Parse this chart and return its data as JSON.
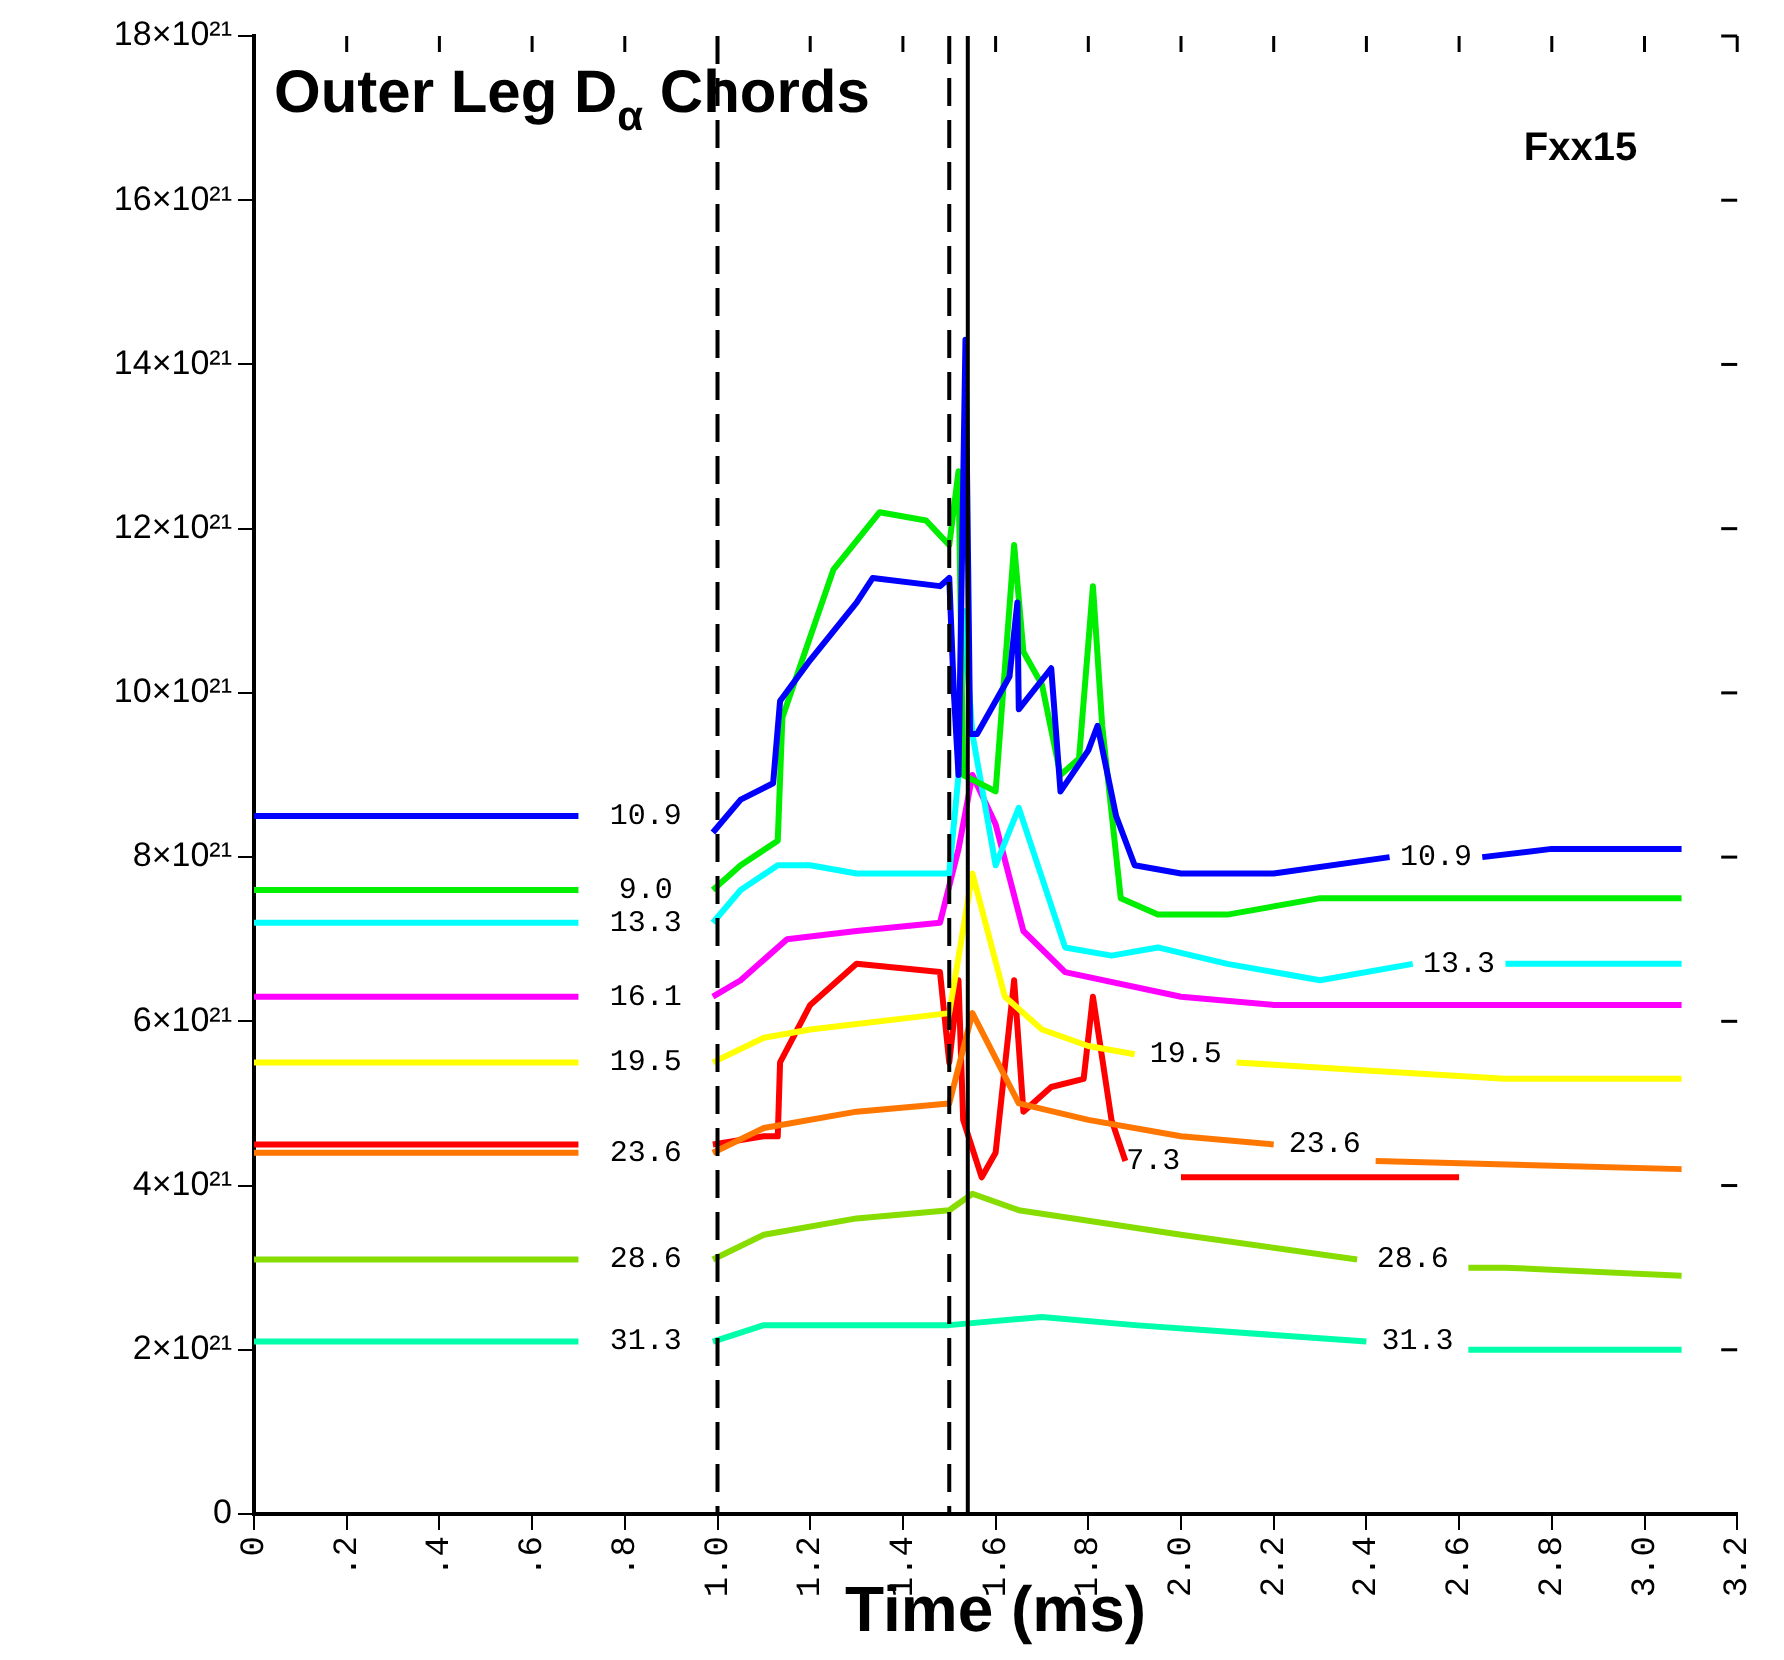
{
  "chart_data": {
    "type": "line",
    "title": "Outer Leg D$_{α}$ Chords",
    "xlabel": "Time (ms)",
    "annotations": [
      "Fxx15"
    ],
    "xlim": [
      0,
      3.2
    ],
    "xticks": [
      0,
      {
        "value": 0.2,
        "label": ".2"
      },
      {
        "value": 0.4,
        "label": ".4"
      },
      {
        "value": 0.6,
        "label": ".6"
      },
      {
        "value": 0.8,
        "label": ".8"
      },
      {
        "value": 1,
        "label": "1.0"
      },
      1.2,
      1.4,
      1.6,
      1.8,
      {
        "value": 2,
        "label": "2.0"
      },
      2.2,
      2.4,
      2.6,
      2.8,
      {
        "value": 3,
        "label": "3.0"
      },
      3.2
    ],
    "ylim": [
      0,
      1.8e+22
    ],
    "yticks": [
      0,
      {
        "value": 2e+21,
        "label": "2×10²¹"
      },
      {
        "value": 4e+21,
        "label": "4×10²¹"
      },
      {
        "value": 6e+21,
        "label": "6×10²¹"
      },
      {
        "value": 8e+21,
        "label": "8×10²¹"
      },
      {
        "value": 1e+22,
        "label": "10×10²¹"
      },
      {
        "value": 1.2e+22,
        "label": "12×10²¹"
      },
      {
        "value": 1.4e+22,
        "label": "14×10²¹"
      },
      {
        "value": 1.6e+22,
        "label": "16×10²¹"
      },
      {
        "value": 1.8e+22,
        "label": "18×10²¹"
      }
    ],
    "grid": false,
    "legend": false,
    "marker": "none",
    "line_style": "solid",
    "ref_lines": [
      {
        "axis": "x",
        "value": 1.0,
        "color": "#000000",
        "line_style": "dashed"
      },
      {
        "axis": "x",
        "value": 1.5,
        "color": "#000000",
        "line_style": "dashed"
      },
      {
        "axis": "x",
        "value": 1.54,
        "color": "#000000",
        "line_style": "solid"
      }
    ],
    "series": [
      {
        "name": "10.9",
        "color": "#0000ff",
        "x": [
          0,
          0.7,
          0.85,
          0.99,
          1.05,
          1.12,
          1.135,
          1.2,
          1.3,
          1.335,
          1.48,
          1.5,
          1.51,
          1.52,
          1.535,
          1.545,
          1.56,
          1.63,
          1.647,
          1.65,
          1.72,
          1.74,
          1.8,
          1.82,
          1.86,
          1.9,
          2.0,
          2.2,
          2.45,
          2.55,
          2.65,
          2.8,
          3.08
        ],
        "values": [
          8.5e+21,
          8.5e+21,
          null,
          8.3e+21,
          8.7e+21,
          8.9e+21,
          9.9e+21,
          1.04e+22,
          1.11e+22,
          1.14e+22,
          1.13e+22,
          1.14e+22,
          1e+22,
          9e+21,
          1.43e+22,
          9.5e+21,
          9.5e+21,
          1.02e+22,
          1.11e+22,
          9.8e+21,
          1.03e+22,
          8.8e+21,
          9.3e+21,
          9.6e+21,
          8.5e+21,
          7.9e+21,
          7.8e+21,
          7.8e+21,
          8e+21,
          null,
          8e+21,
          8.1e+21,
          8.1e+21
        ]
      },
      {
        "name": "9.0",
        "color": "#00ee00",
        "x": [
          0,
          0.7,
          0.85,
          0.99,
          1.05,
          1.13,
          1.14,
          1.25,
          1.35,
          1.45,
          1.5,
          1.52,
          1.53,
          1.6,
          1.64,
          1.66,
          1.7,
          1.74,
          1.78,
          1.81,
          1.83,
          1.87,
          1.95,
          2.1,
          2.3,
          2.6,
          3.08
        ],
        "values": [
          7.6e+21,
          7.6e+21,
          null,
          7.6e+21,
          7.9e+21,
          8.2e+21,
          9.7e+21,
          1.15e+22,
          1.22e+22,
          1.21e+22,
          1.18e+22,
          1.27e+22,
          9e+21,
          8.8e+21,
          1.18e+22,
          1.05e+22,
          1.01e+22,
          9e+21,
          9.2e+21,
          1.13e+22,
          9.6e+21,
          7.5e+21,
          7.3e+21,
          7.3e+21,
          7.5e+21,
          7.5e+21,
          7.5e+21
        ]
      },
      {
        "name": "13.3",
        "color": "#00ffff",
        "x": [
          0,
          0.7,
          0.85,
          0.99,
          1.05,
          1.13,
          1.2,
          1.3,
          1.5,
          1.52,
          1.53,
          1.55,
          1.6,
          1.65,
          1.75,
          1.85,
          1.95,
          2.1,
          2.3,
          2.5,
          2.6,
          2.7,
          3.08
        ],
        "values": [
          7.2e+21,
          7.2e+21,
          null,
          7.2e+21,
          7.6e+21,
          7.9e+21,
          7.9e+21,
          7.8e+21,
          7.8e+21,
          9e+21,
          1.1e+22,
          9.5e+21,
          7.9e+21,
          8.6e+21,
          6.9e+21,
          6.8e+21,
          6.9e+21,
          6.7e+21,
          6.5e+21,
          6.7e+21,
          null,
          6.7e+21,
          6.7e+21
        ]
      },
      {
        "name": "16.1",
        "color": "#ff00ff",
        "x": [
          0,
          0.7,
          0.85,
          0.99,
          1.05,
          1.15,
          1.3,
          1.48,
          1.52,
          1.55,
          1.6,
          1.66,
          1.75,
          2.0,
          2.2,
          3.08
        ],
        "values": [
          6.3e+21,
          6.3e+21,
          null,
          6.3e+21,
          6.5e+21,
          7e+21,
          7.1e+21,
          7.2e+21,
          8.1e+21,
          9e+21,
          8.4e+21,
          7.1e+21,
          6.6e+21,
          6.3e+21,
          6.2e+21,
          6.2e+21
        ]
      },
      {
        "name": "19.5",
        "color": "#ffff00",
        "x": [
          0,
          0.7,
          0.85,
          0.99,
          1.1,
          1.2,
          1.5,
          1.55,
          1.62,
          1.7,
          1.8,
          1.9,
          2.0,
          2.12,
          2.4,
          2.7,
          3.08
        ],
        "values": [
          5.5e+21,
          5.5e+21,
          null,
          5.5e+21,
          5.8e+21,
          5.9e+21,
          6.1e+21,
          7.8e+21,
          6.3e+21,
          5.9e+21,
          5.7e+21,
          5.6e+21,
          null,
          5.5e+21,
          5.4e+21,
          5.3e+21,
          5.3e+21
        ]
      },
      {
        "name": "23.6",
        "color": "#ff7700",
        "x": [
          0,
          0.7,
          0.85,
          0.99,
          1.1,
          1.3,
          1.5,
          1.55,
          1.65,
          1.8,
          2.0,
          2.2,
          2.32,
          2.42,
          3.08
        ],
        "values": [
          4.4e+21,
          4.4e+21,
          null,
          4.4e+21,
          4.7e+21,
          4.9e+21,
          5e+21,
          6.1e+21,
          5e+21,
          4.8e+21,
          4.6e+21,
          4.5e+21,
          null,
          4.3e+21,
          4.2e+21
        ]
      },
      {
        "name": "7.3",
        "color": "#ff0000",
        "x": [
          0,
          0.7,
          0.85,
          0.99,
          1.1,
          1.13,
          1.135,
          1.2,
          1.3,
          1.48,
          1.5,
          1.52,
          1.53,
          1.57,
          1.6,
          1.64,
          1.66,
          1.72,
          1.79,
          1.81,
          1.85,
          1.88,
          1.94,
          2.0,
          2.3,
          2.6
        ],
        "values": [
          4.5e+21,
          4.5e+21,
          null,
          4.5e+21,
          4.6e+21,
          4.6e+21,
          5.5e+21,
          6.2e+21,
          6.7e+21,
          6.6e+21,
          5.5e+21,
          6.5e+21,
          4.8e+21,
          4.1e+21,
          4.4e+21,
          6.5e+21,
          4.9e+21,
          5.2e+21,
          5.3e+21,
          6.3e+21,
          4.8e+21,
          4.3e+21,
          null,
          4.1e+21,
          4.1e+21,
          4.1e+21
        ]
      },
      {
        "name": "28.6",
        "color": "#88dd00",
        "x": [
          0,
          0.7,
          0.85,
          0.99,
          1.1,
          1.3,
          1.5,
          1.55,
          1.65,
          2.0,
          2.38,
          2.5,
          2.62,
          2.7,
          3.08
        ],
        "values": [
          3.1e+21,
          3.1e+21,
          null,
          3.1e+21,
          3.4e+21,
          3.6e+21,
          3.7e+21,
          3.9e+21,
          3.7e+21,
          3.4e+21,
          3.1e+21,
          null,
          3e+21,
          3e+21,
          2.9e+21
        ]
      },
      {
        "name": "31.3",
        "color": "#00ffaa",
        "x": [
          0,
          0.7,
          0.85,
          0.99,
          1.1,
          1.5,
          1.7,
          1.9,
          2.4,
          2.5,
          2.62,
          2.7,
          3.08
        ],
        "values": [
          2.1e+21,
          2.1e+21,
          null,
          2.1e+21,
          2.3e+21,
          2.3e+21,
          2.4e+21,
          2.3e+21,
          2.1e+21,
          null,
          2e+21,
          2e+21,
          2e+21
        ]
      }
    ]
  }
}
